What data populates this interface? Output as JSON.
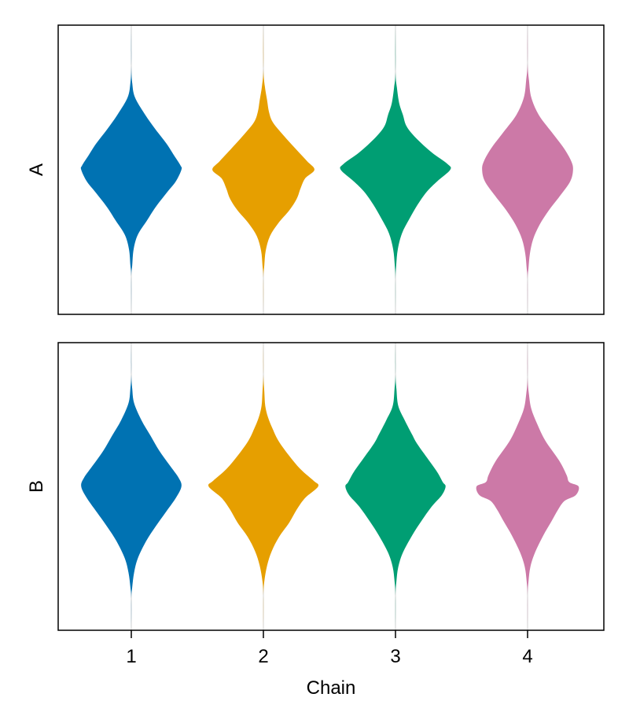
{
  "chart_data": [
    {
      "type": "violin",
      "ylabel": "A",
      "categories": [
        "1",
        "2",
        "3",
        "4"
      ],
      "colors": [
        "#0072b2",
        "#e69f00",
        "#009e73",
        "#cc79a7"
      ],
      "profiles": [
        [
          [
            -1.0,
            0.0
          ],
          [
            -0.72,
            0.0
          ],
          [
            -0.6,
            0.01
          ],
          [
            -0.5,
            0.04
          ],
          [
            -0.38,
            0.15
          ],
          [
            -0.28,
            0.26
          ],
          [
            -0.18,
            0.38
          ],
          [
            -0.1,
            0.46
          ],
          [
            -0.03,
            0.53
          ],
          [
            0.0,
            0.54
          ],
          [
            0.08,
            0.48
          ],
          [
            0.16,
            0.38
          ],
          [
            0.26,
            0.26
          ],
          [
            0.35,
            0.17
          ],
          [
            0.45,
            0.07
          ],
          [
            0.55,
            0.025
          ],
          [
            0.66,
            0.01
          ],
          [
            0.74,
            0.0
          ],
          [
            1.0,
            0.0
          ]
        ],
        [
          [
            -1.0,
            0.0
          ],
          [
            -0.7,
            0.0
          ],
          [
            -0.58,
            0.015
          ],
          [
            -0.48,
            0.04
          ],
          [
            -0.4,
            0.06
          ],
          [
            -0.33,
            0.1
          ],
          [
            -0.25,
            0.2
          ],
          [
            -0.15,
            0.34
          ],
          [
            -0.06,
            0.47
          ],
          [
            0.0,
            0.55
          ],
          [
            0.06,
            0.45
          ],
          [
            0.13,
            0.4
          ],
          [
            0.2,
            0.36
          ],
          [
            0.28,
            0.28
          ],
          [
            0.37,
            0.16
          ],
          [
            0.46,
            0.07
          ],
          [
            0.56,
            0.025
          ],
          [
            0.66,
            0.01
          ],
          [
            0.75,
            0.0
          ],
          [
            1.0,
            0.0
          ]
        ],
        [
          [
            -1.0,
            0.0
          ],
          [
            -0.68,
            0.0
          ],
          [
            -0.57,
            0.015
          ],
          [
            -0.46,
            0.04
          ],
          [
            -0.38,
            0.08
          ],
          [
            -0.3,
            0.12
          ],
          [
            -0.22,
            0.22
          ],
          [
            -0.12,
            0.39
          ],
          [
            -0.04,
            0.56
          ],
          [
            0.0,
            0.59
          ],
          [
            0.08,
            0.45
          ],
          [
            0.15,
            0.34
          ],
          [
            0.24,
            0.24
          ],
          [
            0.34,
            0.15
          ],
          [
            0.44,
            0.07
          ],
          [
            0.55,
            0.025
          ],
          [
            0.66,
            0.008
          ],
          [
            0.76,
            0.0
          ],
          [
            1.0,
            0.0
          ]
        ],
        [
          [
            -1.0,
            0.0
          ],
          [
            -0.74,
            0.0
          ],
          [
            -0.62,
            0.015
          ],
          [
            -0.5,
            0.04
          ],
          [
            -0.38,
            0.12
          ],
          [
            -0.26,
            0.26
          ],
          [
            -0.15,
            0.39
          ],
          [
            -0.06,
            0.47
          ],
          [
            0.0,
            0.49
          ],
          [
            0.08,
            0.46
          ],
          [
            0.18,
            0.35
          ],
          [
            0.28,
            0.23
          ],
          [
            0.38,
            0.13
          ],
          [
            0.48,
            0.06
          ],
          [
            0.58,
            0.025
          ],
          [
            0.68,
            0.01
          ],
          [
            0.76,
            0.0
          ],
          [
            1.0,
            0.0
          ]
        ]
      ]
    },
    {
      "type": "violin",
      "ylabel": "B",
      "categories": [
        "1",
        "2",
        "3",
        "4"
      ],
      "colors": [
        "#0072b2",
        "#e69f00",
        "#009e73",
        "#cc79a7"
      ],
      "profiles": [
        [
          [
            -1.0,
            0.0
          ],
          [
            -0.78,
            0.0
          ],
          [
            -0.68,
            0.01
          ],
          [
            -0.58,
            0.03
          ],
          [
            -0.46,
            0.11
          ],
          [
            -0.35,
            0.21
          ],
          [
            -0.25,
            0.3
          ],
          [
            -0.15,
            0.41
          ],
          [
            -0.06,
            0.51
          ],
          [
            0.0,
            0.54
          ],
          [
            0.08,
            0.48
          ],
          [
            0.18,
            0.37
          ],
          [
            0.28,
            0.26
          ],
          [
            0.38,
            0.16
          ],
          [
            0.5,
            0.07
          ],
          [
            0.6,
            0.03
          ],
          [
            0.7,
            0.01
          ],
          [
            0.78,
            0.0
          ],
          [
            1.0,
            0.0
          ]
        ],
        [
          [
            -1.0,
            0.0
          ],
          [
            -0.78,
            0.0
          ],
          [
            -0.66,
            0.01
          ],
          [
            -0.56,
            0.02
          ],
          [
            -0.48,
            0.05
          ],
          [
            -0.4,
            0.1
          ],
          [
            -0.32,
            0.16
          ],
          [
            -0.22,
            0.27
          ],
          [
            -0.12,
            0.4
          ],
          [
            -0.04,
            0.54
          ],
          [
            0.0,
            0.59
          ],
          [
            0.08,
            0.45
          ],
          [
            0.16,
            0.36
          ],
          [
            0.25,
            0.28
          ],
          [
            0.35,
            0.17
          ],
          [
            0.45,
            0.09
          ],
          [
            0.55,
            0.04
          ],
          [
            0.66,
            0.01
          ],
          [
            0.76,
            0.0
          ],
          [
            1.0,
            0.0
          ]
        ],
        [
          [
            -1.0,
            0.0
          ],
          [
            -0.78,
            0.0
          ],
          [
            -0.68,
            0.01
          ],
          [
            -0.56,
            0.03
          ],
          [
            -0.46,
            0.1
          ],
          [
            -0.36,
            0.18
          ],
          [
            -0.3,
            0.23
          ],
          [
            -0.2,
            0.34
          ],
          [
            -0.1,
            0.45
          ],
          [
            -0.03,
            0.51
          ],
          [
            0.0,
            0.54
          ],
          [
            0.06,
            0.5
          ],
          [
            0.14,
            0.39
          ],
          [
            0.24,
            0.28
          ],
          [
            0.34,
            0.18
          ],
          [
            0.46,
            0.08
          ],
          [
            0.56,
            0.03
          ],
          [
            0.66,
            0.01
          ],
          [
            0.76,
            0.0
          ],
          [
            1.0,
            0.0
          ]
        ],
        [
          [
            -1.0,
            0.0
          ],
          [
            -0.76,
            0.0
          ],
          [
            -0.64,
            0.015
          ],
          [
            -0.54,
            0.04
          ],
          [
            -0.44,
            0.1
          ],
          [
            -0.32,
            0.19
          ],
          [
            -0.18,
            0.34
          ],
          [
            -0.08,
            0.42
          ],
          [
            -0.03,
            0.45
          ],
          [
            0.0,
            0.55
          ],
          [
            0.06,
            0.52
          ],
          [
            0.1,
            0.4
          ],
          [
            0.16,
            0.33
          ],
          [
            0.24,
            0.26
          ],
          [
            0.34,
            0.17
          ],
          [
            0.46,
            0.08
          ],
          [
            0.56,
            0.03
          ],
          [
            0.66,
            0.01
          ],
          [
            0.76,
            0.0
          ],
          [
            1.0,
            0.0
          ]
        ]
      ]
    }
  ],
  "x_axis": {
    "label": "Chain",
    "tick_labels": [
      "1",
      "2",
      "3",
      "4"
    ]
  }
}
